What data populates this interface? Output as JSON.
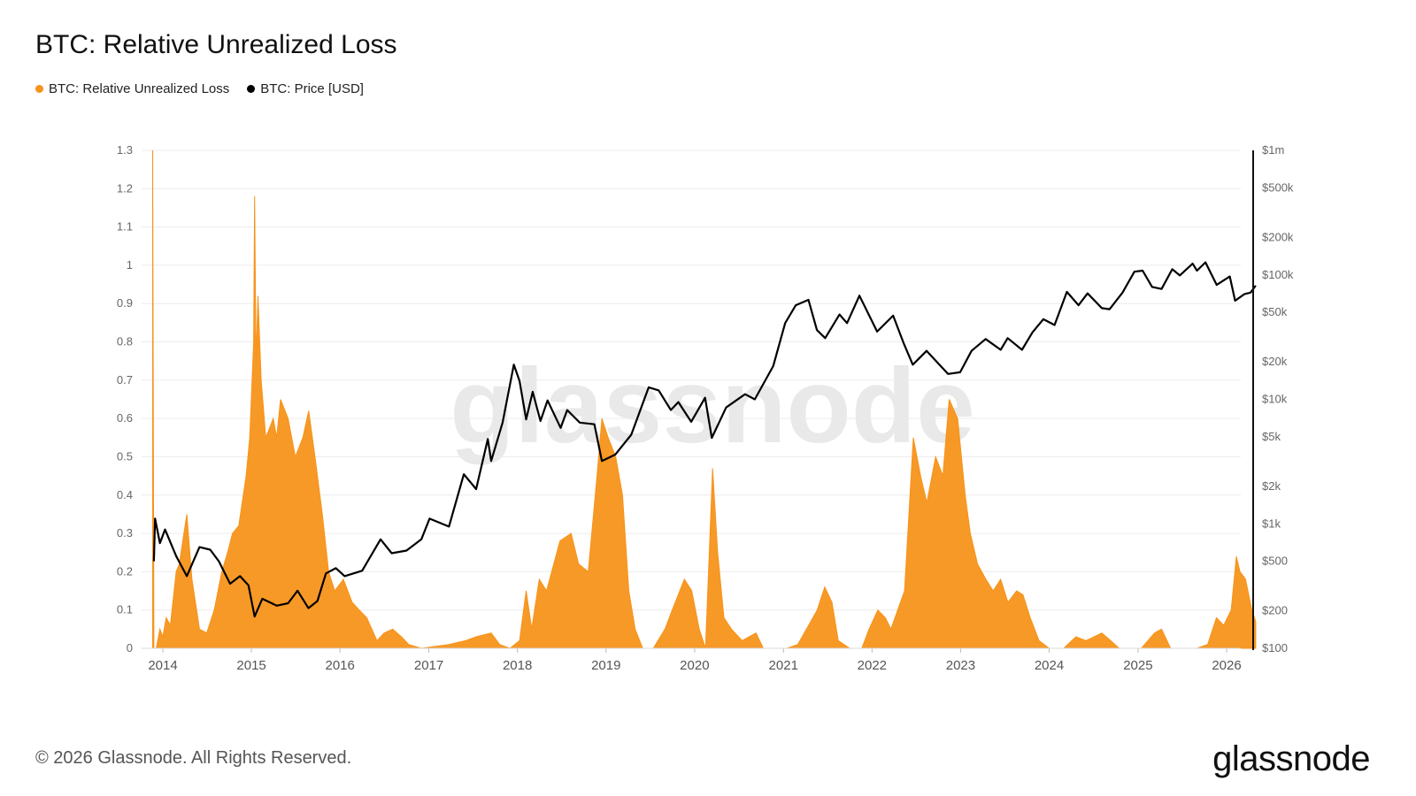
{
  "header": {
    "title": "BTC: Relative Unrealized Loss"
  },
  "legend": [
    {
      "label": "BTC: Relative Unrealized Loss",
      "color": "#f7931a"
    },
    {
      "label": "BTC: Price [USD]",
      "color": "#000000"
    }
  ],
  "watermark": "glassnode",
  "footer": {
    "copyright": "© 2026 Glassnode. All Rights Reserved."
  },
  "brand": {
    "logo_text": "glassnode"
  },
  "chart_data": {
    "type": "area",
    "title": "BTC: Relative Unrealized Loss",
    "grid": true,
    "legend_position": "top-left",
    "x_ticks": [
      "2014",
      "2015",
      "2016",
      "2017",
      "2018",
      "2019",
      "2020",
      "2021",
      "2022",
      "2023",
      "2024",
      "2025",
      "2026"
    ],
    "y_left": {
      "ticks": [
        "0",
        "0.1",
        "0.2",
        "0.3",
        "0.4",
        "0.5",
        "0.6",
        "0.7",
        "0.8",
        "0.9",
        "1",
        "1.1",
        "1.2",
        "1.3"
      ],
      "range": [
        0,
        1.3
      ]
    },
    "y_right": {
      "scale": "log",
      "ticks": [
        "$100",
        "$200",
        "$500",
        "$1k",
        "$2k",
        "$5k",
        "$10k",
        "$20k",
        "$50k",
        "$100k",
        "$200k",
        "$500k",
        "$1m"
      ],
      "range": [
        100,
        1000000
      ]
    },
    "series": [
      {
        "name": "BTC: Relative Unrealized Loss",
        "axis": "left",
        "color": "#f7931a",
        "points": [
          [
            "2013-11-20",
            1.3
          ],
          [
            "2013-11-25",
            0.0
          ],
          [
            "2013-12-05",
            0.0
          ],
          [
            "2013-12-20",
            0.05
          ],
          [
            "2014-01-01",
            0.03
          ],
          [
            "2014-01-15",
            0.08
          ],
          [
            "2014-02-01",
            0.06
          ],
          [
            "2014-02-25",
            0.2
          ],
          [
            "2014-03-10",
            0.22
          ],
          [
            "2014-04-10",
            0.35
          ],
          [
            "2014-05-01",
            0.18
          ],
          [
            "2014-06-01",
            0.05
          ],
          [
            "2014-07-01",
            0.04
          ],
          [
            "2014-08-01",
            0.1
          ],
          [
            "2014-09-01",
            0.2
          ],
          [
            "2014-09-25",
            0.25
          ],
          [
            "2014-10-15",
            0.3
          ],
          [
            "2014-11-10",
            0.32
          ],
          [
            "2014-12-10",
            0.45
          ],
          [
            "2014-12-25",
            0.55
          ],
          [
            "2015-01-10",
            0.8
          ],
          [
            "2015-01-14",
            1.18
          ],
          [
            "2015-01-20",
            0.75
          ],
          [
            "2015-01-28",
            0.92
          ],
          [
            "2015-02-10",
            0.7
          ],
          [
            "2015-03-01",
            0.55
          ],
          [
            "2015-04-01",
            0.6
          ],
          [
            "2015-04-15",
            0.55
          ],
          [
            "2015-05-01",
            0.65
          ],
          [
            "2015-06-01",
            0.6
          ],
          [
            "2015-07-01",
            0.5
          ],
          [
            "2015-08-01",
            0.55
          ],
          [
            "2015-08-25",
            0.62
          ],
          [
            "2015-09-20",
            0.5
          ],
          [
            "2015-10-20",
            0.35
          ],
          [
            "2015-11-15",
            0.2
          ],
          [
            "2015-12-10",
            0.15
          ],
          [
            "2016-01-15",
            0.18
          ],
          [
            "2016-02-20",
            0.12
          ],
          [
            "2016-03-20",
            0.1
          ],
          [
            "2016-04-20",
            0.08
          ],
          [
            "2016-06-01",
            0.02
          ],
          [
            "2016-07-01",
            0.04
          ],
          [
            "2016-08-05",
            0.05
          ],
          [
            "2016-09-10",
            0.03
          ],
          [
            "2016-10-10",
            0.01
          ],
          [
            "2016-12-01",
            0.0
          ],
          [
            "2017-03-25",
            0.01
          ],
          [
            "2017-06-01",
            0.02
          ],
          [
            "2017-07-15",
            0.03
          ],
          [
            "2017-09-15",
            0.04
          ],
          [
            "2017-10-20",
            0.01
          ],
          [
            "2017-12-01",
            0.0
          ],
          [
            "2018-01-10",
            0.02
          ],
          [
            "2018-02-06",
            0.15
          ],
          [
            "2018-03-01",
            0.05
          ],
          [
            "2018-04-01",
            0.18
          ],
          [
            "2018-05-01",
            0.15
          ],
          [
            "2018-06-25",
            0.28
          ],
          [
            "2018-08-10",
            0.3
          ],
          [
            "2018-09-10",
            0.22
          ],
          [
            "2018-10-20",
            0.2
          ],
          [
            "2018-11-25",
            0.45
          ],
          [
            "2018-12-15",
            0.6
          ],
          [
            "2019-01-10",
            0.55
          ],
          [
            "2019-02-10",
            0.5
          ],
          [
            "2019-03-10",
            0.4
          ],
          [
            "2019-04-05",
            0.15
          ],
          [
            "2019-05-01",
            0.05
          ],
          [
            "2019-06-01",
            0.0
          ],
          [
            "2019-07-15",
            0.0
          ],
          [
            "2019-09-01",
            0.05
          ],
          [
            "2019-10-01",
            0.1
          ],
          [
            "2019-11-20",
            0.18
          ],
          [
            "2019-12-20",
            0.15
          ],
          [
            "2020-01-20",
            0.05
          ],
          [
            "2020-02-15",
            0.0
          ],
          [
            "2020-03-15",
            0.47
          ],
          [
            "2020-04-05",
            0.25
          ],
          [
            "2020-05-01",
            0.08
          ],
          [
            "2020-06-01",
            0.05
          ],
          [
            "2020-07-15",
            0.02
          ],
          [
            "2020-09-10",
            0.04
          ],
          [
            "2020-10-10",
            0.0
          ],
          [
            "2021-01-15",
            0.0
          ],
          [
            "2021-03-01",
            0.01
          ],
          [
            "2021-05-20",
            0.1
          ],
          [
            "2021-06-20",
            0.16
          ],
          [
            "2021-07-20",
            0.12
          ],
          [
            "2021-08-15",
            0.02
          ],
          [
            "2021-10-01",
            0.0
          ],
          [
            "2021-11-20",
            0.0
          ],
          [
            "2021-12-20",
            0.05
          ],
          [
            "2022-01-25",
            0.1
          ],
          [
            "2022-02-25",
            0.08
          ],
          [
            "2022-03-20",
            0.05
          ],
          [
            "2022-05-15",
            0.15
          ],
          [
            "2022-06-20",
            0.55
          ],
          [
            "2022-07-20",
            0.45
          ],
          [
            "2022-08-15",
            0.38
          ],
          [
            "2022-09-20",
            0.5
          ],
          [
            "2022-10-20",
            0.45
          ],
          [
            "2022-11-15",
            0.65
          ],
          [
            "2022-12-20",
            0.6
          ],
          [
            "2023-01-20",
            0.4
          ],
          [
            "2023-02-10",
            0.3
          ],
          [
            "2023-03-12",
            0.22
          ],
          [
            "2023-04-15",
            0.18
          ],
          [
            "2023-05-15",
            0.15
          ],
          [
            "2023-06-15",
            0.18
          ],
          [
            "2023-07-15",
            0.12
          ],
          [
            "2023-08-20",
            0.15
          ],
          [
            "2023-09-15",
            0.14
          ],
          [
            "2023-10-15",
            0.08
          ],
          [
            "2023-11-20",
            0.02
          ],
          [
            "2024-01-01",
            0.0
          ],
          [
            "2024-03-01",
            0.0
          ],
          [
            "2024-04-20",
            0.03
          ],
          [
            "2024-06-01",
            0.02
          ],
          [
            "2024-08-05",
            0.04
          ],
          [
            "2024-09-10",
            0.02
          ],
          [
            "2024-10-15",
            0.0
          ],
          [
            "2025-01-15",
            0.0
          ],
          [
            "2025-03-10",
            0.04
          ],
          [
            "2025-04-08",
            0.05
          ],
          [
            "2025-05-15",
            0.0
          ],
          [
            "2025-09-01",
            0.0
          ],
          [
            "2025-10-15",
            0.01
          ],
          [
            "2025-11-20",
            0.08
          ],
          [
            "2025-12-20",
            0.06
          ],
          [
            "2026-01-20",
            0.1
          ],
          [
            "2026-02-10",
            0.24
          ],
          [
            "2026-02-25",
            0.2
          ],
          [
            "2026-03-20",
            0.18
          ],
          [
            "2026-04-15",
            0.1
          ],
          [
            "2026-05-01",
            0.07
          ]
        ]
      },
      {
        "name": "BTC: Price [USD]",
        "axis": "right",
        "color": "#000000",
        "points": [
          [
            "2013-11-25",
            500
          ],
          [
            "2013-11-30",
            1100
          ],
          [
            "2013-12-20",
            700
          ],
          [
            "2014-01-10",
            900
          ],
          [
            "2014-02-25",
            550
          ],
          [
            "2014-04-10",
            380
          ],
          [
            "2014-06-01",
            650
          ],
          [
            "2014-07-15",
            620
          ],
          [
            "2014-08-20",
            500
          ],
          [
            "2014-10-05",
            330
          ],
          [
            "2014-11-15",
            380
          ],
          [
            "2014-12-20",
            320
          ],
          [
            "2015-01-14",
            180
          ],
          [
            "2015-02-15",
            250
          ],
          [
            "2015-04-15",
            220
          ],
          [
            "2015-06-01",
            230
          ],
          [
            "2015-07-10",
            290
          ],
          [
            "2015-08-24",
            210
          ],
          [
            "2015-09-30",
            240
          ],
          [
            "2015-11-04",
            400
          ],
          [
            "2015-12-15",
            440
          ],
          [
            "2016-01-20",
            380
          ],
          [
            "2016-04-01",
            420
          ],
          [
            "2016-06-16",
            750
          ],
          [
            "2016-08-01",
            580
          ],
          [
            "2016-10-01",
            610
          ],
          [
            "2016-12-01",
            750
          ],
          [
            "2017-01-04",
            1100
          ],
          [
            "2017-03-25",
            950
          ],
          [
            "2017-05-25",
            2500
          ],
          [
            "2017-07-15",
            1900
          ],
          [
            "2017-09-01",
            4800
          ],
          [
            "2017-09-15",
            3200
          ],
          [
            "2017-11-01",
            6500
          ],
          [
            "2017-12-17",
            19000
          ],
          [
            "2018-01-10",
            14000
          ],
          [
            "2018-02-06",
            6900
          ],
          [
            "2018-03-05",
            11500
          ],
          [
            "2018-04-06",
            6700
          ],
          [
            "2018-05-05",
            9800
          ],
          [
            "2018-06-28",
            5900
          ],
          [
            "2018-07-25",
            8200
          ],
          [
            "2018-09-15",
            6500
          ],
          [
            "2018-11-14",
            6300
          ],
          [
            "2018-12-15",
            3200
          ],
          [
            "2019-02-08",
            3600
          ],
          [
            "2019-04-15",
            5200
          ],
          [
            "2019-06-26",
            12500
          ],
          [
            "2019-08-06",
            11800
          ],
          [
            "2019-09-25",
            8200
          ],
          [
            "2019-10-26",
            9500
          ],
          [
            "2019-12-18",
            6600
          ],
          [
            "2020-02-13",
            10300
          ],
          [
            "2020-03-12",
            4900
          ],
          [
            "2020-05-10",
            8600
          ],
          [
            "2020-07-27",
            11000
          ],
          [
            "2020-09-05",
            10000
          ],
          [
            "2020-11-20",
            18500
          ],
          [
            "2021-01-08",
            41000
          ],
          [
            "2021-02-21",
            57000
          ],
          [
            "2021-04-14",
            63000
          ],
          [
            "2021-05-19",
            36000
          ],
          [
            "2021-06-22",
            31000
          ],
          [
            "2021-08-20",
            48000
          ],
          [
            "2021-09-20",
            41000
          ],
          [
            "2021-11-10",
            68000
          ],
          [
            "2022-01-22",
            35000
          ],
          [
            "2022-03-29",
            47000
          ],
          [
            "2022-05-12",
            28000
          ],
          [
            "2022-06-18",
            19000
          ],
          [
            "2022-08-14",
            24500
          ],
          [
            "2022-11-10",
            16000
          ],
          [
            "2022-12-30",
            16500
          ],
          [
            "2023-02-15",
            24500
          ],
          [
            "2023-04-14",
            30500
          ],
          [
            "2023-06-15",
            25000
          ],
          [
            "2023-07-14",
            31000
          ],
          [
            "2023-09-11",
            25000
          ],
          [
            "2023-10-24",
            34500
          ],
          [
            "2023-12-08",
            44000
          ],
          [
            "2024-01-23",
            39500
          ],
          [
            "2024-03-14",
            73000
          ],
          [
            "2024-05-01",
            57000
          ],
          [
            "2024-06-07",
            71000
          ],
          [
            "2024-08-05",
            54000
          ],
          [
            "2024-09-06",
            53000
          ],
          [
            "2024-10-29",
            72000
          ],
          [
            "2024-12-17",
            106000
          ],
          [
            "2025-01-20",
            108000
          ],
          [
            "2025-02-28",
            80000
          ],
          [
            "2025-04-08",
            77000
          ],
          [
            "2025-05-22",
            111000
          ],
          [
            "2025-06-22",
            99000
          ],
          [
            "2025-08-14",
            123000
          ],
          [
            "2025-09-01",
            108000
          ],
          [
            "2025-10-06",
            126000
          ],
          [
            "2025-11-21",
            83000
          ],
          [
            "2026-01-14",
            97000
          ],
          [
            "2026-02-05",
            62000
          ],
          [
            "2026-03-15",
            70000
          ],
          [
            "2026-04-10",
            72000
          ],
          [
            "2026-05-01",
            82000
          ]
        ]
      }
    ]
  }
}
